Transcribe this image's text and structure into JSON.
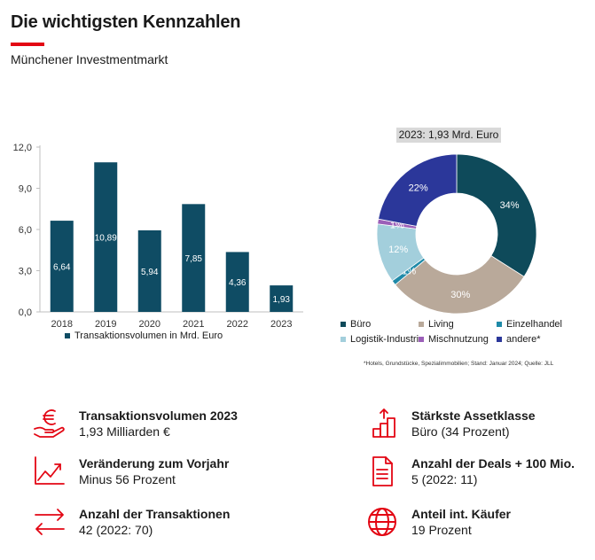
{
  "header": {
    "title": "Die wichtigsten Kennzahlen",
    "subtitle": "Münchener Investmentmarkt"
  },
  "chart_data": [
    {
      "type": "bar",
      "categories": [
        "2018",
        "2019",
        "2020",
        "2021",
        "2022",
        "2023"
      ],
      "values": [
        6.64,
        10.89,
        5.94,
        7.85,
        4.36,
        1.93
      ],
      "value_labels": [
        "6,64",
        "10,89",
        "5,94",
        "7,85",
        "4,36",
        "1,93"
      ],
      "y_ticks": [
        "0,0",
        "3,0",
        "6,0",
        "9,0",
        "12,0"
      ],
      "ylim": [
        0,
        12
      ],
      "legend": "Transaktionsvolumen in Mrd. Euro",
      "legend_position": "bottom",
      "color": "#0f4c64"
    },
    {
      "type": "pie",
      "variant": "donut",
      "title": "2023: 1,93 Mrd. Euro",
      "slices": [
        {
          "name": "Büro",
          "value": 34,
          "label": "34%",
          "color": "#0e4a5a"
        },
        {
          "name": "Living",
          "value": 30,
          "label": "30%",
          "color": "#b9a99a"
        },
        {
          "name": "Einzelhandel",
          "value": 1,
          "label": "1%",
          "color": "#1f8aa8"
        },
        {
          "name": "Logistik-Industrie",
          "value": 12,
          "label": "12%",
          "color": "#a3cfdc"
        },
        {
          "name": "Mischnutzung",
          "value": 1,
          "label": "1%",
          "color": "#9b5fb8"
        },
        {
          "name": "andere*",
          "value": 22,
          "label": "22%",
          "color": "#2b379a"
        }
      ],
      "legend_position": "bottom",
      "footnote": "*Hotels, Grundstücke, Spezialimmobilien; Stand: Januar 2024; Quelle: JLL"
    }
  ],
  "kpis": [
    {
      "icon": "euro-hand-icon",
      "label": "Transaktionsvolumen 2023",
      "value": "1,93 Milliarden €"
    },
    {
      "icon": "rising-stairs-icon",
      "label": "Stärkste Assetklasse",
      "value": "Büro (34 Prozent)"
    },
    {
      "icon": "trend-chart-icon",
      "label": "Veränderung zum Vorjahr",
      "value": "Minus 56 Prozent"
    },
    {
      "icon": "document-icon",
      "label": "Anzahl der Deals + 100 Mio.",
      "value": "5 (2022: 11)"
    },
    {
      "icon": "exchange-arrows-icon",
      "label": "Anzahl der Transaktionen",
      "value": "42 (2022: 70)"
    },
    {
      "icon": "globe-icon",
      "label": "Anteil int. Käufer",
      "value": "19 Prozent"
    }
  ],
  "colors": {
    "accent": "#e30613",
    "icon": "#e30613"
  }
}
